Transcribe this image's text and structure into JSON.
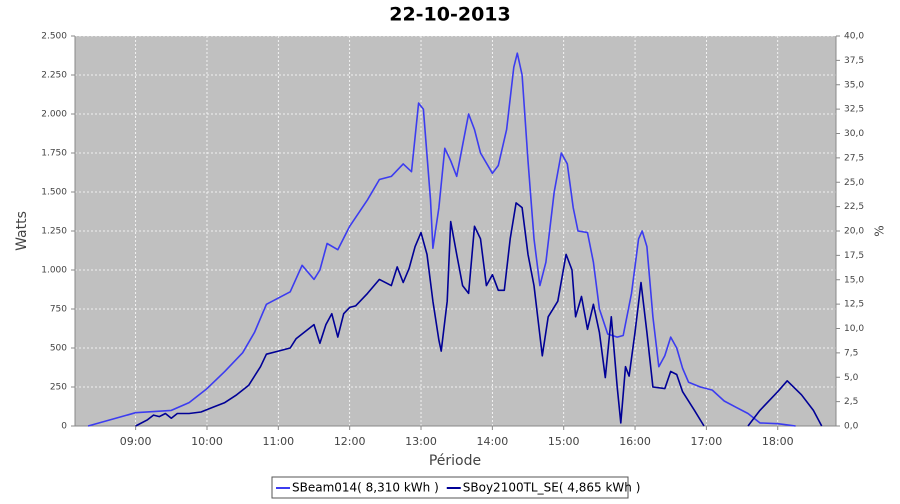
{
  "chart_data": {
    "type": "line",
    "title": "22-10-2013",
    "x_label": "Période",
    "y_label": "Watts",
    "y2_label": "%",
    "xlim": [
      "08:09",
      "18:49"
    ],
    "xticks": [
      "09:00",
      "10:00",
      "11:00",
      "12:00",
      "13:00",
      "14:00",
      "15:00",
      "16:00",
      "17:00",
      "18:00"
    ],
    "ylim": [
      0,
      2500
    ],
    "yticks": [
      0,
      250,
      500,
      750,
      {
        "value": 1000,
        "label": "1.000"
      },
      {
        "value": 1250,
        "label": "1.250"
      },
      {
        "value": 1500,
        "label": "1.500"
      },
      {
        "value": 1750,
        "label": "1.750"
      },
      {
        "value": 2000,
        "label": "2.000"
      },
      {
        "value": 2250,
        "label": "2.250"
      },
      {
        "value": 2500,
        "label": "2.500"
      }
    ],
    "y2lim": [
      0,
      40
    ],
    "y2ticks": [
      {
        "value": 0,
        "label": "0,0"
      },
      {
        "value": 2.5,
        "label": "2,5"
      },
      {
        "value": 5,
        "label": "5,0"
      },
      {
        "value": 7.5,
        "label": "7,5"
      },
      {
        "value": 10,
        "label": "10,0"
      },
      {
        "value": 12.5,
        "label": "12,5"
      },
      {
        "value": 15,
        "label": "15,0"
      },
      {
        "value": 17.5,
        "label": "17,5"
      },
      {
        "value": 20,
        "label": "20,0"
      },
      {
        "value": 22.5,
        "label": "22,5"
      },
      {
        "value": 25,
        "label": "25,0"
      },
      {
        "value": 27.5,
        "label": "27,5"
      },
      {
        "value": 30,
        "label": "30,0"
      },
      {
        "value": 32.5,
        "label": "32,5"
      },
      {
        "value": 35,
        "label": "35,0"
      },
      {
        "value": 37.5,
        "label": "37,5"
      },
      {
        "value": 40,
        "label": "40,0"
      }
    ],
    "grid": true,
    "series": [
      {
        "name": "SBeam014( 8,310 kWh )",
        "color": "#3c3cf0",
        "x": [
          "08:20",
          "09:00",
          "09:30",
          "09:45",
          "10:00",
          "10:15",
          "10:30",
          "10:40",
          "10:50",
          "11:00",
          "11:10",
          "11:20",
          "11:30",
          "11:35",
          "11:41",
          "11:50",
          "12:00",
          "12:15",
          "12:25",
          "12:35",
          "12:45",
          "12:52",
          "12:58",
          "13:02",
          "13:08",
          "13:10",
          "13:15",
          "13:20",
          "13:25",
          "13:30",
          "13:35",
          "13:40",
          "13:45",
          "13:50",
          "14:00",
          "14:05",
          "14:12",
          "14:18",
          "14:21",
          "14:25",
          "14:30",
          "14:35",
          "14:40",
          "14:45",
          "14:52",
          "14:58",
          "15:03",
          "15:08",
          "15:12",
          "15:20",
          "15:25",
          "15:30",
          "15:37",
          "15:45",
          "15:50",
          "15:57",
          "16:03",
          "16:06",
          "16:10",
          "16:15",
          "16:20",
          "16:25",
          "16:30",
          "16:35",
          "16:40",
          "16:45",
          "16:55",
          "17:05",
          "17:15",
          "17:25",
          "17:35",
          "17:45",
          "18:00",
          "18:05",
          "18:15"
        ],
        "values": [
          0,
          85,
          100,
          150,
          240,
          350,
          470,
          600,
          780,
          820,
          860,
          1030,
          940,
          1000,
          1170,
          1130,
          1280,
          1450,
          1580,
          1600,
          1680,
          1630,
          2070,
          2030,
          1450,
          1140,
          1400,
          1780,
          1700,
          1600,
          1800,
          2000,
          1900,
          1750,
          1620,
          1670,
          1900,
          2300,
          2390,
          2250,
          1700,
          1200,
          900,
          1050,
          1500,
          1750,
          1680,
          1400,
          1250,
          1240,
          1050,
          750,
          590,
          570,
          580,
          850,
          1200,
          1250,
          1150,
          700,
          380,
          450,
          570,
          500,
          370,
          280,
          250,
          230,
          160,
          120,
          80,
          20,
          15,
          10,
          0
        ]
      },
      {
        "name": "SBoy2100TL_SE( 4,865 kWh )",
        "color": "#000096",
        "x": [
          "09:00",
          "09:10",
          "09:15",
          "09:20",
          "09:25",
          "09:30",
          "09:35",
          "09:45",
          "09:55",
          "10:05",
          "10:15",
          "10:25",
          "10:35",
          "10:45",
          "10:50",
          "11:00",
          "11:10",
          "11:15",
          "11:25",
          "11:30",
          "11:35",
          "11:40",
          "11:45",
          "11:50",
          "11:55",
          "12:00",
          "12:05",
          "12:15",
          "12:25",
          "12:35",
          "12:40",
          "12:45",
          "12:50",
          "12:55",
          "13:00",
          "13:05",
          "13:10",
          "13:15",
          "13:17",
          "13:22",
          "13:25",
          "13:30",
          "13:35",
          "13:40",
          "13:45",
          "13:50",
          "13:55",
          "14:00",
          "14:05",
          "14:10",
          "14:15",
          "14:20",
          "14:25",
          "14:30",
          "14:35",
          "14:42",
          "14:47",
          "14:55",
          "15:02",
          "15:07",
          "15:10",
          "15:15",
          "15:20",
          "15:25",
          "15:30",
          "15:35",
          "15:40",
          "15:45",
          "15:48",
          "15:52",
          "15:55",
          "16:00",
          "16:05",
          "16:10",
          "16:15",
          "16:25",
          "16:30",
          "16:35",
          "16:40",
          "16:50",
          "16:58",
          null,
          "17:35",
          "17:45",
          "18:00",
          "18:08",
          "18:20",
          "18:30",
          "18:37"
        ],
        "values": [
          0,
          40,
          70,
          60,
          80,
          50,
          80,
          80,
          90,
          120,
          150,
          200,
          260,
          380,
          460,
          480,
          500,
          560,
          620,
          650,
          530,
          650,
          720,
          570,
          720,
          760,
          770,
          850,
          940,
          900,
          1020,
          920,
          1010,
          1150,
          1240,
          1100,
          800,
          550,
          480,
          800,
          1310,
          1100,
          900,
          850,
          1280,
          1200,
          900,
          970,
          870,
          870,
          1200,
          1430,
          1400,
          1100,
          900,
          450,
          700,
          800,
          1100,
          1000,
          700,
          830,
          620,
          780,
          600,
          310,
          700,
          250,
          20,
          380,
          320,
          600,
          920,
          600,
          250,
          240,
          350,
          330,
          220,
          100,
          0,
          null,
          0,
          100,
          220,
          290,
          200,
          100,
          0
        ]
      }
    ]
  }
}
